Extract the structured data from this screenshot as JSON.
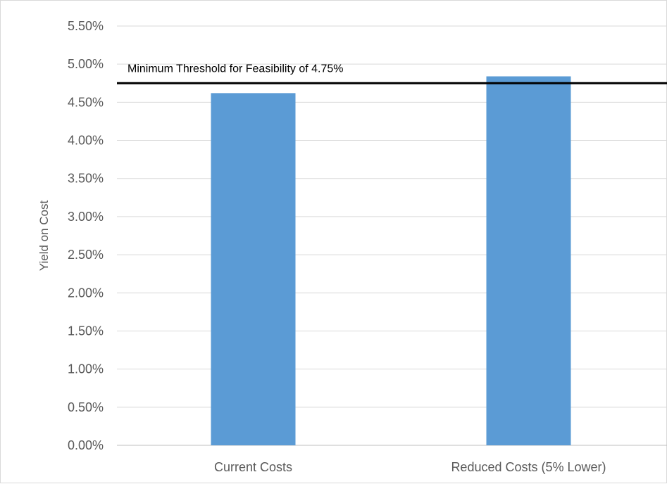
{
  "chart_data": {
    "type": "bar",
    "categories": [
      "Current Costs",
      "Reduced Costs (5% Lower)"
    ],
    "series": [
      {
        "values": [
          4.62,
          4.84
        ]
      }
    ],
    "bar_color": "#5b9bd5",
    "title": "",
    "xlabel": "",
    "ylabel": "Yield on Cost",
    "ylim": [
      0,
      5.5
    ],
    "y_ticks": [
      0,
      0.5,
      1.0,
      1.5,
      2.0,
      2.5,
      3.0,
      3.5,
      4.0,
      4.5,
      5.0,
      5.5
    ],
    "y_tick_labels": [
      "0.00%",
      "0.50%",
      "1.00%",
      "1.50%",
      "2.00%",
      "2.50%",
      "3.00%",
      "3.50%",
      "4.00%",
      "4.50%",
      "5.00%",
      "5.50%"
    ],
    "grid": true,
    "legend": "none",
    "threshold": {
      "value": 4.75,
      "label": "Minimum Threshold for Feasibility of 4.75%",
      "color": "#000000"
    }
  }
}
